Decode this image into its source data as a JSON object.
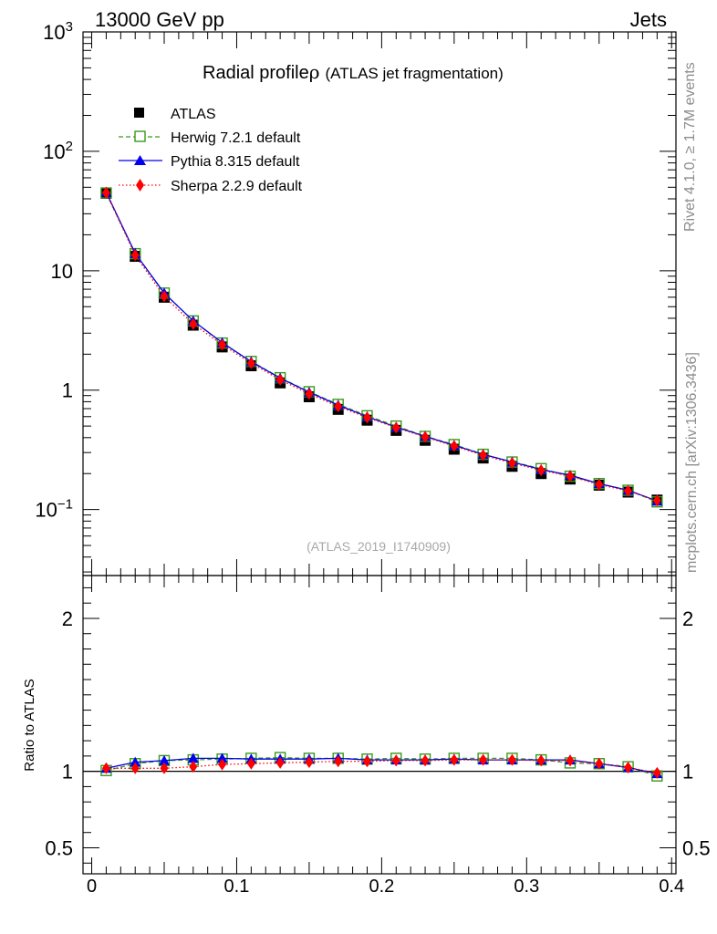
{
  "header": {
    "left": "13000 GeV pp",
    "right": "Jets"
  },
  "title": {
    "main": "Radial profile",
    "symbol": "ρ",
    "sub": "(ATLAS jet fragmentation)"
  },
  "side_labels": {
    "rivet": "Rivet 4.1.0, ≥ 1.7M events",
    "site": "mcplots.cern.ch [arXiv:1306.3436]"
  },
  "watermark": "(ATLAS_2019_I1740909)",
  "ratio_ylabel": "Ratio to ATLAS",
  "colors": {
    "atlas": "#000000",
    "herwig": "#3a9a1a",
    "pythia": "#0000ee",
    "sherpa": "#ff0000"
  },
  "chart_data": [
    {
      "type": "line",
      "scale": "log",
      "title": "Radial profile ρ (ATLAS jet fragmentation)",
      "xlabel": "",
      "ylabel": "",
      "xlim": [
        -0.006,
        0.403
      ],
      "ylim": [
        0.028,
        1000
      ],
      "y_ticks": [
        {
          "value": 1000,
          "base": "10",
          "exp": "3"
        },
        {
          "value": 100,
          "base": "10",
          "exp": "2"
        },
        {
          "value": 10,
          "base": "10",
          "exp": ""
        },
        {
          "value": 1,
          "base": "1",
          "exp": ""
        },
        {
          "value": 0.1,
          "base": "10",
          "exp": "−1"
        }
      ],
      "legend_position": "top-left",
      "x": [
        0.01,
        0.03,
        0.05,
        0.07,
        0.09,
        0.11,
        0.13,
        0.15,
        0.17,
        0.19,
        0.21,
        0.23,
        0.25,
        0.27,
        0.29,
        0.31,
        0.33,
        0.35,
        0.37,
        0.39
      ],
      "series": [
        {
          "name": "ATLAS",
          "key": "atlas",
          "style": "data",
          "values": [
            44.5,
            13.2,
            6.0,
            3.5,
            2.3,
            1.6,
            1.15,
            0.88,
            0.69,
            0.56,
            0.46,
            0.38,
            0.32,
            0.27,
            0.23,
            0.2,
            0.18,
            0.16,
            0.14,
            0.12
          ]
        },
        {
          "name": "Herwig 7.2.1 default",
          "key": "herwig",
          "style": "dashed",
          "values": [
            44.8,
            13.9,
            6.5,
            3.8,
            2.48,
            1.74,
            1.27,
            0.97,
            0.76,
            0.61,
            0.5,
            0.41,
            0.35,
            0.29,
            0.25,
            0.22,
            0.19,
            0.165,
            0.145,
            0.116
          ]
        },
        {
          "name": "Pythia 8.315 default",
          "key": "pythia",
          "style": "solid",
          "values": [
            45.5,
            14.0,
            6.5,
            3.8,
            2.5,
            1.73,
            1.26,
            0.96,
            0.75,
            0.6,
            0.49,
            0.41,
            0.345,
            0.29,
            0.25,
            0.216,
            0.194,
            0.165,
            0.145,
            0.118
          ]
        },
        {
          "name": "Sherpa 2.2.9 default",
          "key": "sherpa",
          "style": "dotted",
          "values": [
            45.0,
            13.5,
            6.1,
            3.58,
            2.4,
            1.68,
            1.22,
            0.93,
            0.73,
            0.59,
            0.485,
            0.405,
            0.34,
            0.285,
            0.245,
            0.213,
            0.19,
            0.162,
            0.143,
            0.119
          ]
        }
      ]
    },
    {
      "type": "line",
      "scale": "linear",
      "title": "",
      "xlabel": "",
      "ylabel": "Ratio to ATLAS",
      "xlim": [
        -0.006,
        0.403
      ],
      "ylim": [
        0.33,
        2.28
      ],
      "y_ticks": [
        {
          "value": 2,
          "label": "2"
        },
        {
          "value": 1,
          "label": "1"
        },
        {
          "value": 0.5,
          "label": "0.5"
        }
      ],
      "x_ticks": [
        {
          "value": 0,
          "label": "0"
        },
        {
          "value": 0.1,
          "label": "0.1"
        },
        {
          "value": 0.2,
          "label": "0.2"
        },
        {
          "value": 0.3,
          "label": "0.3"
        },
        {
          "value": 0.4,
          "label": "0.4"
        }
      ],
      "reference": 1,
      "x": [
        0.01,
        0.03,
        0.05,
        0.07,
        0.09,
        0.11,
        0.13,
        0.15,
        0.17,
        0.19,
        0.21,
        0.23,
        0.25,
        0.27,
        0.29,
        0.31,
        0.33,
        0.35,
        0.37,
        0.39
      ],
      "series": [
        {
          "name": "Herwig 7.2.1 default",
          "key": "herwig",
          "style": "dashed",
          "values": [
            1.005,
            1.05,
            1.07,
            1.075,
            1.08,
            1.085,
            1.09,
            1.085,
            1.085,
            1.08,
            1.085,
            1.08,
            1.085,
            1.085,
            1.085,
            1.075,
            1.055,
            1.05,
            1.03,
            0.97
          ]
        },
        {
          "name": "Pythia 8.315 default",
          "key": "pythia",
          "style": "solid",
          "values": [
            1.02,
            1.06,
            1.07,
            1.085,
            1.085,
            1.08,
            1.08,
            1.08,
            1.085,
            1.075,
            1.075,
            1.075,
            1.08,
            1.075,
            1.075,
            1.075,
            1.075,
            1.05,
            1.025,
            0.985
          ]
        },
        {
          "name": "Sherpa 2.2.9 default",
          "key": "sherpa",
          "style": "dotted",
          "values": [
            1.02,
            1.02,
            1.02,
            1.03,
            1.045,
            1.05,
            1.055,
            1.06,
            1.065,
            1.065,
            1.07,
            1.07,
            1.075,
            1.075,
            1.075,
            1.07,
            1.07,
            1.05,
            1.025,
            0.99
          ]
        }
      ]
    }
  ]
}
